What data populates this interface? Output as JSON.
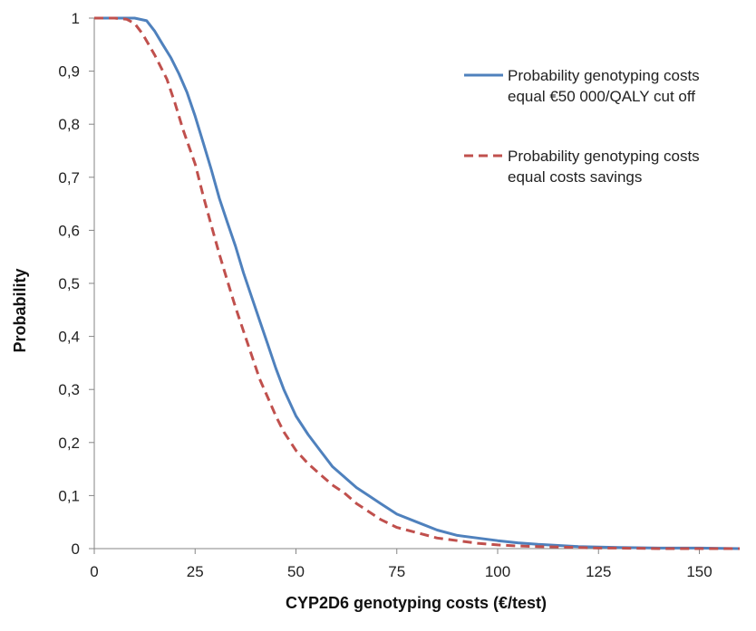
{
  "chart_data": {
    "type": "line",
    "title": "",
    "xlabel": "CYP2D6 genotyping costs (€/test)",
    "ylabel": "Probability",
    "xlim": [
      0,
      160
    ],
    "ylim": [
      0,
      1
    ],
    "x_ticks": [
      0,
      25,
      50,
      75,
      100,
      125,
      150
    ],
    "x_tick_labels": [
      "0",
      "25",
      "50",
      "75",
      "100",
      "125",
      "150"
    ],
    "y_ticks": [
      0,
      0.1,
      0.2,
      0.3,
      0.4,
      0.5,
      0.6,
      0.7,
      0.8,
      0.9,
      1
    ],
    "y_tick_labels": [
      "0",
      "0,1",
      "0,2",
      "0,3",
      "0,4",
      "0,5",
      "0,6",
      "0,7",
      "0,8",
      "0,9",
      "1"
    ],
    "grid": false,
    "legend_position": "top-right",
    "series": [
      {
        "name": "Probability genotyping costs equal €50 000/QALY cut off",
        "legend_lines": [
          "Probability genotyping costs",
          "equal €50 000/QALY cut off"
        ],
        "color": "#4F81BD",
        "style": "solid",
        "x": [
          0,
          5,
          10,
          13,
          15,
          17,
          19,
          21,
          23,
          25,
          27,
          29,
          31,
          33,
          35,
          37,
          39,
          41,
          43,
          45,
          47,
          50,
          53,
          56,
          59,
          62,
          65,
          68,
          71,
          75,
          80,
          85,
          90,
          95,
          100,
          105,
          110,
          115,
          120,
          125,
          130,
          140,
          150,
          160
        ],
        "values": [
          1.0,
          1.0,
          1.0,
          0.995,
          0.975,
          0.95,
          0.925,
          0.895,
          0.86,
          0.815,
          0.765,
          0.715,
          0.66,
          0.615,
          0.57,
          0.52,
          0.475,
          0.43,
          0.385,
          0.34,
          0.3,
          0.25,
          0.215,
          0.185,
          0.155,
          0.135,
          0.115,
          0.1,
          0.085,
          0.065,
          0.05,
          0.035,
          0.025,
          0.02,
          0.015,
          0.011,
          0.008,
          0.006,
          0.004,
          0.003,
          0.002,
          0.001,
          0.001,
          0.0
        ]
      },
      {
        "name": "Probability genotyping costs equal costs savings",
        "legend_lines": [
          "Probability genotyping costs",
          "equal costs savings"
        ],
        "color": "#C0504D",
        "style": "dashed",
        "x": [
          0,
          5,
          8,
          10,
          12,
          15,
          18,
          20,
          22,
          25,
          27,
          29,
          31,
          33,
          35,
          37,
          39,
          41,
          43,
          45,
          47,
          50,
          53,
          56,
          59,
          62,
          65,
          68,
          71,
          75,
          80,
          85,
          90,
          95,
          100,
          105,
          110,
          115,
          120,
          125,
          130,
          140,
          150,
          160
        ],
        "values": [
          1.0,
          1.0,
          0.998,
          0.99,
          0.97,
          0.93,
          0.885,
          0.84,
          0.79,
          0.725,
          0.665,
          0.61,
          0.555,
          0.505,
          0.455,
          0.41,
          0.365,
          0.32,
          0.285,
          0.25,
          0.22,
          0.185,
          0.16,
          0.14,
          0.12,
          0.105,
          0.085,
          0.07,
          0.055,
          0.04,
          0.03,
          0.02,
          0.015,
          0.01,
          0.007,
          0.005,
          0.004,
          0.003,
          0.002,
          0.001,
          0.001,
          0.0,
          0.0,
          0.0
        ]
      }
    ]
  }
}
